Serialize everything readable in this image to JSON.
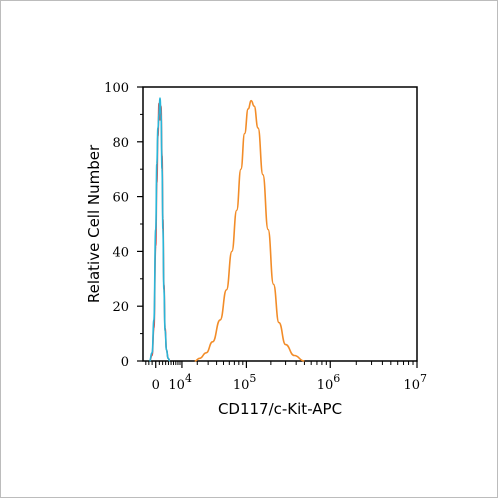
{
  "chart_data": {
    "type": "line",
    "title": "",
    "xlabel": "CD117/c-Kit-APC",
    "ylabel": "Relative Cell Number",
    "ylim": [
      0,
      100
    ],
    "x_scale": "biexponential",
    "x_tick_labels": [
      {
        "base": "0",
        "exp": ""
      },
      {
        "base": "10",
        "exp": "4"
      },
      {
        "base": "10",
        "exp": "5"
      },
      {
        "base": "10",
        "exp": "6"
      },
      {
        "base": "10",
        "exp": "7"
      }
    ],
    "y_ticks": [
      0,
      20,
      40,
      60,
      80,
      100
    ],
    "grid": false,
    "legend": "none",
    "series": [
      {
        "color": "#d9534f",
        "x": [
          -1800,
          -1000,
          -500,
          0,
          300,
          600,
          900,
          1200,
          1500,
          1800,
          2100,
          2400,
          2800,
          3300,
          3900,
          4500
        ],
        "y": [
          0,
          2,
          12,
          42,
          65,
          82,
          94,
          88,
          93,
          75,
          52,
          28,
          12,
          4,
          1,
          0
        ]
      },
      {
        "color": "#29b6d8",
        "x": [
          -1800,
          -1000,
          -500,
          0,
          300,
          600,
          900,
          1200,
          1500,
          1800,
          2100,
          2400,
          2800,
          3300,
          3900,
          4500
        ],
        "y": [
          0,
          3,
          15,
          48,
          72,
          85,
          90,
          96,
          90,
          70,
          48,
          26,
          11,
          4,
          1,
          0
        ]
      },
      {
        "color": "#f28c28",
        "x": [
          18000,
          22000,
          28000,
          35000,
          45000,
          55000,
          65000,
          75000,
          85000,
          95000,
          105000,
          115000,
          125000,
          140000,
          160000,
          185000,
          215000,
          250000,
          300000,
          380000,
          500000
        ],
        "y": [
          0,
          1,
          3,
          7,
          15,
          26,
          40,
          55,
          70,
          83,
          92,
          95,
          93,
          85,
          68,
          48,
          28,
          14,
          6,
          2,
          0
        ]
      }
    ]
  }
}
